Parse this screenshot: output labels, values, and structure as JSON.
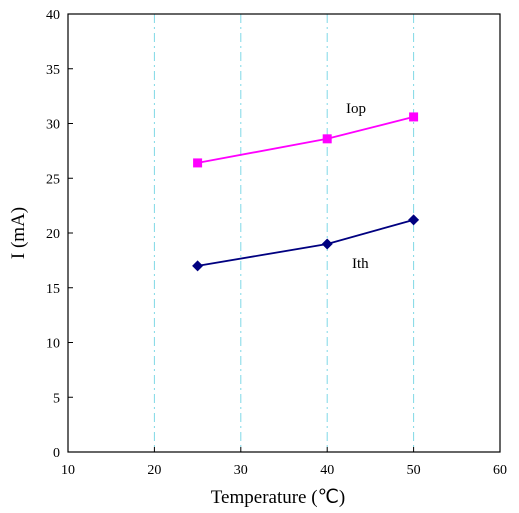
{
  "chart_data": {
    "type": "line",
    "xlabel": "Temperature (℃)",
    "ylabel": "I (mA)",
    "xlim": [
      10,
      60
    ],
    "ylim": [
      0,
      40
    ],
    "xticks": [
      "10",
      "20",
      "30",
      "40",
      "50",
      "60"
    ],
    "yticks": [
      "0",
      "5",
      "10",
      "15",
      "20",
      "25",
      "30",
      "35",
      "40"
    ],
    "grid": "vertical dash-dot",
    "series": [
      {
        "name": "Iop",
        "color": "#ff00ff",
        "marker": "square",
        "x": [
          25,
          40,
          50
        ],
        "y": [
          26.4,
          28.6,
          30.6
        ]
      },
      {
        "name": "Ith",
        "color": "#000080",
        "marker": "diamond",
        "x": [
          25,
          40,
          50
        ],
        "y": [
          17.0,
          19.0,
          21.2
        ]
      }
    ]
  }
}
